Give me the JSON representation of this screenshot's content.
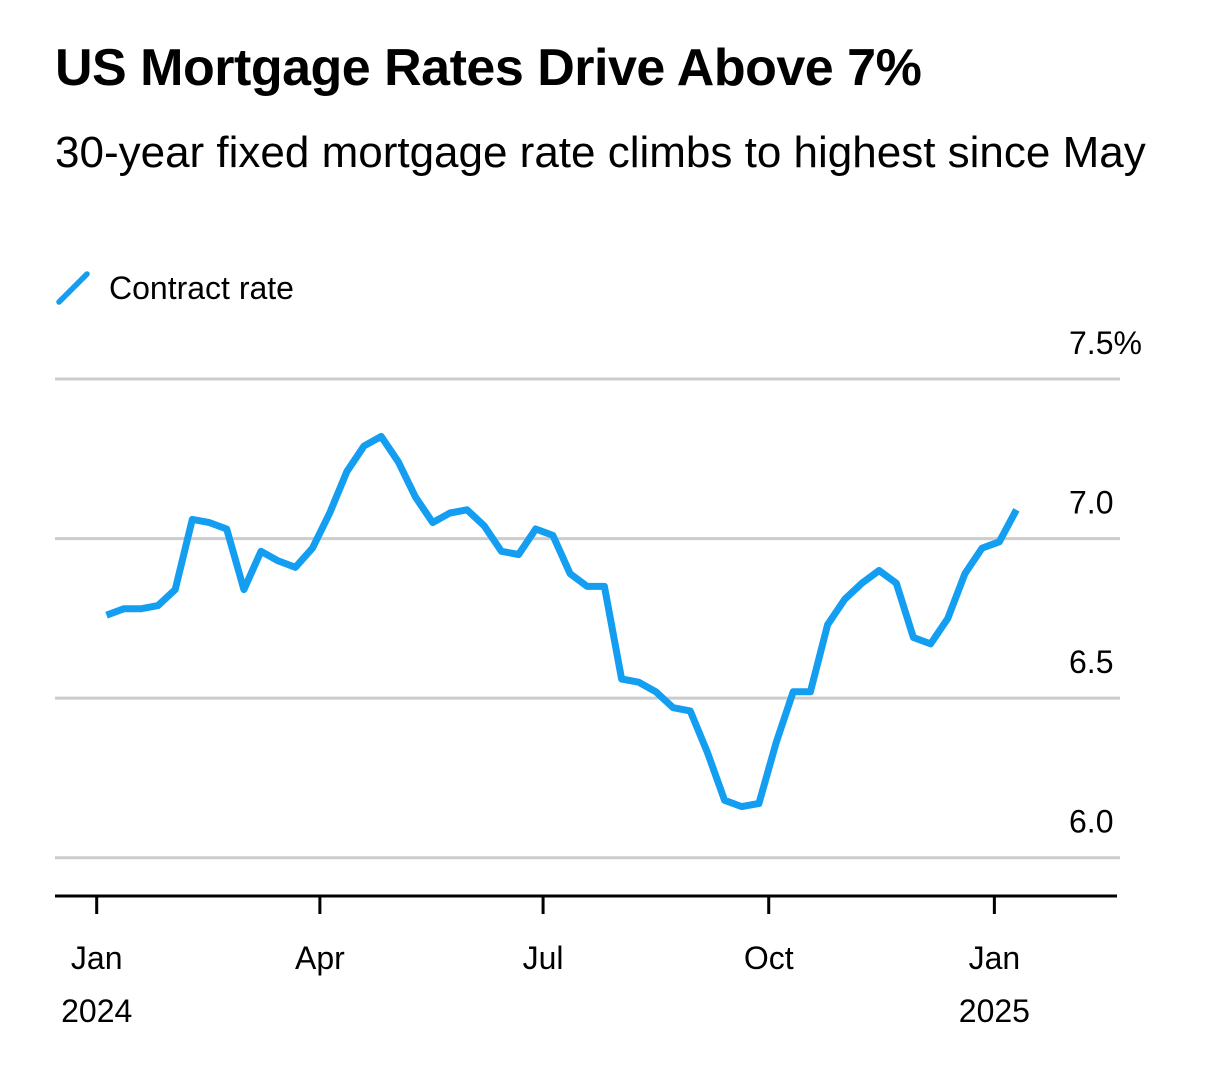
{
  "chart_data": {
    "type": "line",
    "title": "US Mortgage Rates Drive Above 7%",
    "subtitle": "30-year fixed mortgage rate climbs to highest since May",
    "series": [
      {
        "name": "Contract rate",
        "color": "#139ef2",
        "dates": [
          "2024-01-05",
          "2024-01-12",
          "2024-01-19",
          "2024-01-26",
          "2024-02-02",
          "2024-02-09",
          "2024-02-16",
          "2024-02-23",
          "2024-03-01",
          "2024-03-08",
          "2024-03-15",
          "2024-03-22",
          "2024-03-29",
          "2024-04-05",
          "2024-04-12",
          "2024-04-19",
          "2024-04-26",
          "2024-05-03",
          "2024-05-10",
          "2024-05-17",
          "2024-05-24",
          "2024-05-31",
          "2024-06-07",
          "2024-06-14",
          "2024-06-21",
          "2024-06-28",
          "2024-07-05",
          "2024-07-12",
          "2024-07-19",
          "2024-07-26",
          "2024-08-02",
          "2024-08-09",
          "2024-08-16",
          "2024-08-23",
          "2024-08-30",
          "2024-09-06",
          "2024-09-13",
          "2024-09-20",
          "2024-09-27",
          "2024-10-04",
          "2024-10-11",
          "2024-10-18",
          "2024-10-25",
          "2024-11-01",
          "2024-11-08",
          "2024-11-15",
          "2024-11-22",
          "2024-11-29",
          "2024-12-06",
          "2024-12-13",
          "2024-12-20",
          "2024-12-27",
          "2025-01-03",
          "2025-01-10"
        ],
        "values": [
          6.76,
          6.78,
          6.78,
          6.79,
          6.84,
          7.06,
          7.05,
          7.03,
          6.84,
          6.96,
          6.93,
          6.91,
          6.97,
          7.08,
          7.21,
          7.29,
          7.32,
          7.24,
          7.13,
          7.05,
          7.08,
          7.09,
          7.04,
          6.96,
          6.95,
          7.03,
          7.01,
          6.89,
          6.85,
          6.85,
          6.56,
          6.55,
          6.52,
          6.47,
          6.46,
          6.33,
          6.18,
          6.16,
          6.17,
          6.36,
          6.52,
          6.52,
          6.73,
          6.81,
          6.86,
          6.9,
          6.86,
          6.69,
          6.67,
          6.75,
          6.89,
          6.97,
          6.99,
          7.09
        ]
      }
    ],
    "x_ticks": [
      {
        "date": "2024-01-01",
        "label": "Jan",
        "year": "2024"
      },
      {
        "date": "2024-04-01",
        "label": "Apr",
        "year": ""
      },
      {
        "date": "2024-07-01",
        "label": "Jul",
        "year": ""
      },
      {
        "date": "2024-10-01",
        "label": "Oct",
        "year": ""
      },
      {
        "date": "2025-01-01",
        "label": "Jan",
        "year": "2025"
      }
    ],
    "y_ticks": [
      {
        "value": 6.0,
        "label": "6.0"
      },
      {
        "value": 6.5,
        "label": "6.5"
      },
      {
        "value": 7.0,
        "label": "7.0"
      },
      {
        "value": 7.5,
        "label": "7.5%"
      }
    ],
    "xlim": [
      "2023-12-15",
      "2025-02-20"
    ],
    "ylim": [
      5.88,
      7.5
    ],
    "grid": true,
    "legend_position": "top-left",
    "xlabel": "",
    "ylabel": "",
    "colors": {
      "line": "#139ef2",
      "grid": "#cccccc",
      "axis": "#000000"
    }
  }
}
